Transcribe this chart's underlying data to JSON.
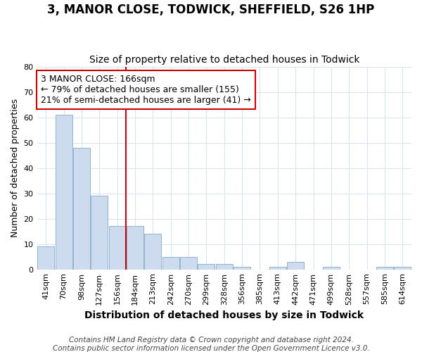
{
  "title1": "3, MANOR CLOSE, TODWICK, SHEFFIELD, S26 1HP",
  "title2": "Size of property relative to detached houses in Todwick",
  "xlabel": "Distribution of detached houses by size in Todwick",
  "ylabel": "Number of detached properties",
  "categories": [
    "41sqm",
    "70sqm",
    "98sqm",
    "127sqm",
    "156sqm",
    "184sqm",
    "213sqm",
    "242sqm",
    "270sqm",
    "299sqm",
    "328sqm",
    "356sqm",
    "385sqm",
    "413sqm",
    "442sqm",
    "471sqm",
    "499sqm",
    "528sqm",
    "557sqm",
    "585sqm",
    "614sqm"
  ],
  "values": [
    9,
    61,
    48,
    29,
    17,
    17,
    14,
    5,
    5,
    2,
    2,
    1,
    0,
    1,
    3,
    0,
    1,
    0,
    0,
    1,
    1
  ],
  "bar_color": "#ccdcee",
  "bar_edge_color": "#90b4d0",
  "background_color": "#ffffff",
  "grid_color": "#d8e4f0",
  "ylim": [
    0,
    80
  ],
  "yticks": [
    0,
    10,
    20,
    30,
    40,
    50,
    60,
    70,
    80
  ],
  "vline_x": 4.5,
  "vline_color": "#cc0000",
  "annotation_text": "3 MANOR CLOSE: 166sqm\n← 79% of detached houses are smaller (155)\n21% of semi-detached houses are larger (41) →",
  "annotation_box_color": "#ffffff",
  "annotation_edge_color": "#cc0000",
  "footer1": "Contains HM Land Registry data © Crown copyright and database right 2024.",
  "footer2": "Contains public sector information licensed under the Open Government Licence v3.0.",
  "title1_fontsize": 12,
  "title2_fontsize": 10,
  "xlabel_fontsize": 10,
  "ylabel_fontsize": 9,
  "tick_fontsize": 8,
  "annotation_fontsize": 9,
  "footer_fontsize": 7.5
}
